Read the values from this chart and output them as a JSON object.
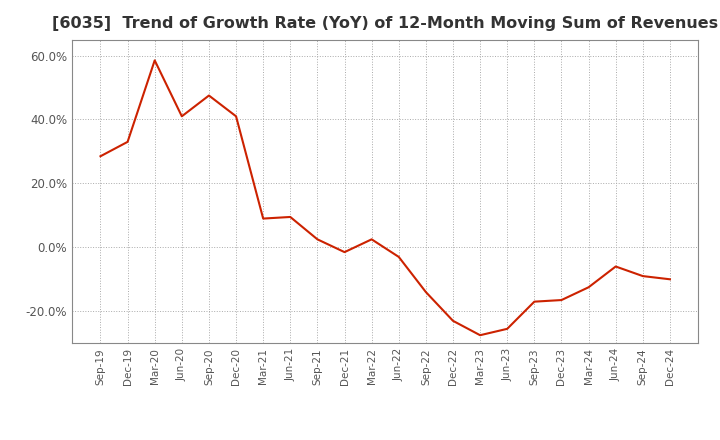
{
  "title": "[6035]  Trend of Growth Rate (YoY) of 12-Month Moving Sum of Revenues",
  "title_fontsize": 11.5,
  "line_color": "#cc2200",
  "background_color": "#ffffff",
  "grid_color": "#aaaaaa",
  "x_labels": [
    "Sep-19",
    "Dec-19",
    "Mar-20",
    "Jun-20",
    "Sep-20",
    "Dec-20",
    "Mar-21",
    "Jun-21",
    "Sep-21",
    "Dec-21",
    "Mar-22",
    "Jun-22",
    "Sep-22",
    "Dec-22",
    "Mar-23",
    "Jun-23",
    "Sep-23",
    "Dec-23",
    "Mar-24",
    "Jun-24",
    "Sep-24",
    "Dec-24"
  ],
  "y_values": [
    28.5,
    33.0,
    58.5,
    41.0,
    47.5,
    41.0,
    9.0,
    9.5,
    2.5,
    -1.5,
    2.5,
    -3.0,
    -14.0,
    -23.0,
    -27.5,
    -25.5,
    -17.0,
    -16.5,
    -12.5,
    -6.0,
    -9.0,
    -10.0
  ],
  "ylim": [
    -30,
    65
  ],
  "yticks": [
    -20.0,
    0.0,
    20.0,
    40.0,
    60.0
  ]
}
